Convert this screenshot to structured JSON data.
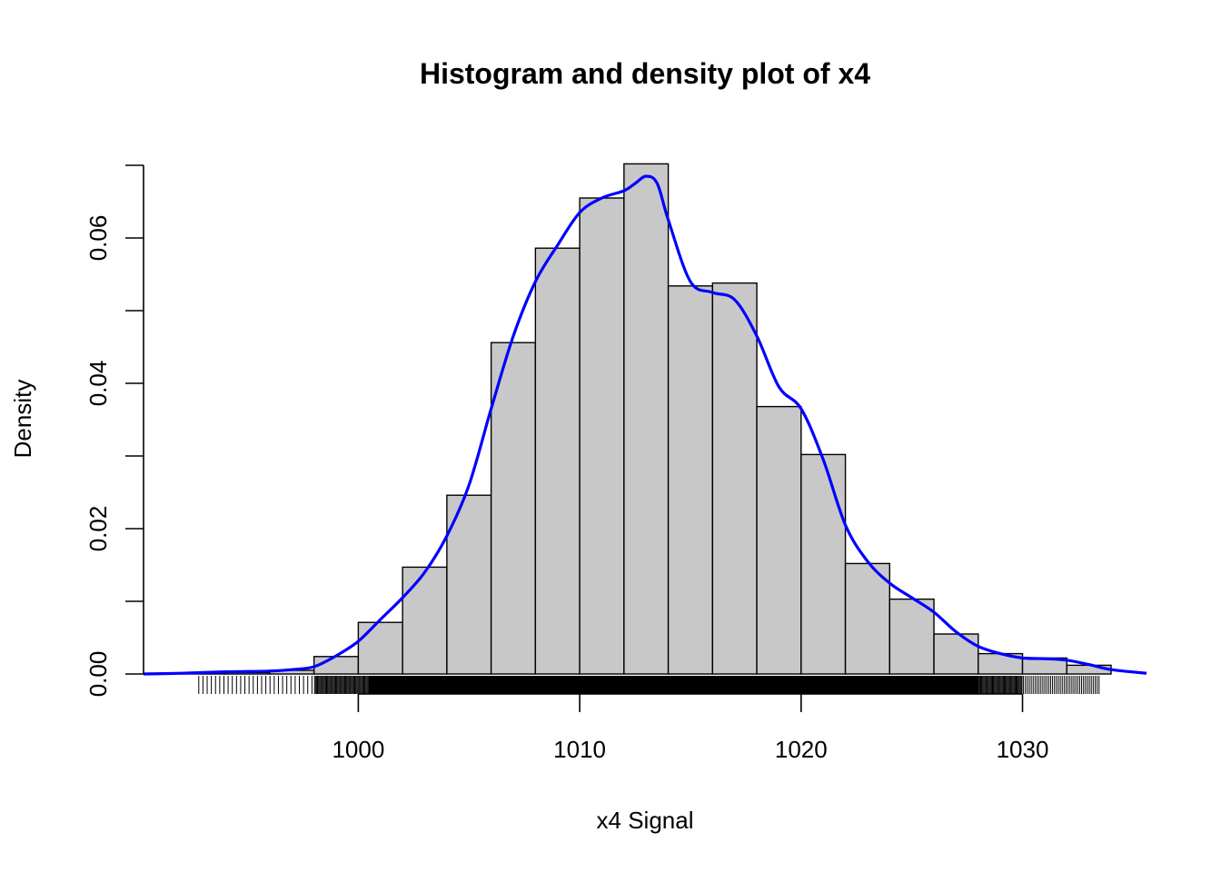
{
  "chart_data": {
    "type": "bar",
    "title": "Histogram and density plot of x4",
    "xlabel": "x4 Signal",
    "ylabel": "Density",
    "xlim": [
      990.3,
      1035.6
    ],
    "ylim": [
      0,
      0.07
    ],
    "x_ticks": [
      1000,
      1010,
      1020,
      1030
    ],
    "x_tick_labels": [
      "1000",
      "1010",
      "1020",
      "1030"
    ],
    "y_ticks": [
      0,
      0.01,
      0.02,
      0.03,
      0.04,
      0.05,
      0.06,
      0.07
    ],
    "y_tick_labels": [
      "0.00",
      "",
      "0.02",
      "",
      "0.04",
      "",
      "0.06",
      ""
    ],
    "bin_edges": [
      992,
      994,
      996,
      998,
      1000,
      1002,
      1004,
      1006,
      1008,
      1010,
      1012,
      1014,
      1016,
      1018,
      1020,
      1022,
      1024,
      1026,
      1028,
      1030,
      1032,
      1034
    ],
    "series": [
      {
        "kind": "histogram",
        "values": [
          0.0001,
          0.0002,
          0.0005,
          0.0024,
          0.0071,
          0.0147,
          0.0246,
          0.0456,
          0.0586,
          0.0655,
          0.0702,
          0.0534,
          0.0538,
          0.0368,
          0.0302,
          0.0152,
          0.0103,
          0.0055,
          0.0028,
          0.0022,
          0.0012
        ],
        "color": "#c8c8c8"
      },
      {
        "kind": "density",
        "color": "#0000ff",
        "x": [
          990.3,
          992,
          994,
          996,
          997,
          998,
          999,
          1000,
          1001,
          1002,
          1003,
          1004,
          1005,
          1006,
          1007,
          1008,
          1009,
          1010,
          1011,
          1012,
          1012.5,
          1013,
          1013.5,
          1014,
          1015,
          1016,
          1017,
          1018,
          1019,
          1020,
          1021,
          1022,
          1023,
          1024,
          1025,
          1026,
          1027,
          1028,
          1029,
          1030,
          1031,
          1032,
          1033,
          1034,
          1035.6
        ],
        "y": [
          0.0,
          0.0001,
          0.0003,
          0.0004,
          0.0006,
          0.001,
          0.0025,
          0.0045,
          0.0075,
          0.0105,
          0.014,
          0.019,
          0.026,
          0.0365,
          0.0465,
          0.054,
          0.059,
          0.0635,
          0.0655,
          0.0665,
          0.0675,
          0.0685,
          0.0675,
          0.0625,
          0.054,
          0.0525,
          0.0515,
          0.0465,
          0.0395,
          0.0365,
          0.0295,
          0.0205,
          0.0155,
          0.0125,
          0.0105,
          0.0085,
          0.0058,
          0.0038,
          0.0028,
          0.0022,
          0.0021,
          0.0019,
          0.0013,
          0.0006,
          0.0001
        ]
      }
    ],
    "rug": {
      "color": "#000000",
      "ranges": [
        {
          "from": 992.7,
          "to": 998.0,
          "count": 28
        },
        {
          "from": 998.0,
          "to": 1000.5,
          "count": 55
        },
        {
          "from": 1000.5,
          "to": 1028.0,
          "count": 1500
        },
        {
          "from": 1028.0,
          "to": 1030.0,
          "count": 45
        },
        {
          "from": 1030.0,
          "to": 1033.5,
          "count": 40
        }
      ]
    }
  }
}
